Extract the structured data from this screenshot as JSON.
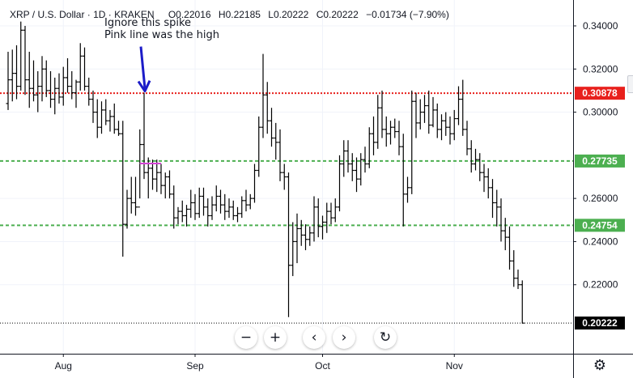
{
  "header": {
    "symbol": "XRP / U.S. Dollar · 1D · KRAKEN",
    "open": "O0.22016",
    "high": "H0.22185",
    "low": "L0.20222",
    "close": "C0.20222",
    "change": "−0.01734 (−7.90%)"
  },
  "annotations": {
    "line1": "Ignore this spike",
    "line2": "Pink line was the high"
  },
  "colors": {
    "candles": "#000000",
    "red_line": "#e8201c",
    "green_line": "#4caf50",
    "last_price_label": "#000000",
    "arrow": "#1c1cc8",
    "pink_line": "#d446d4"
  },
  "toolbar": {
    "zoom_out": "−",
    "zoom_in": "+",
    "scroll_left": "‹",
    "scroll_right": "›",
    "reset": "↻"
  },
  "settings_icon": "gear-icon",
  "chart_data": {
    "type": "ohlc",
    "x_labels": [
      "Aug",
      "Sep",
      "Oct",
      "Nov"
    ],
    "y_tick_labels": [
      "0.34000",
      "0.32000",
      "0.30000",
      "0.26000",
      "0.24000",
      "0.22000"
    ],
    "ylim": [
      0.188,
      0.352
    ],
    "horizontal_lines": [
      {
        "value": 0.30878,
        "label": "0.30878",
        "color": "#e8201c",
        "style": "dotted"
      },
      {
        "value": 0.27735,
        "label": "0.27735",
        "color": "#4caf50",
        "style": "dashed"
      },
      {
        "value": 0.24754,
        "label": "0.24754",
        "color": "#4caf50",
        "style": "dashed"
      },
      {
        "value": 0.20222,
        "label": "0.20222",
        "color": "#000000",
        "style": "dotted",
        "last_price": true
      }
    ],
    "annotation_marks": {
      "arrow_bar_index": 32,
      "pink_segment": {
        "from_index": 31,
        "to_index": 36,
        "value": 0.2762
      }
    },
    "month_start_indices": {
      "Aug": 13,
      "Sep": 44,
      "Oct": 74,
      "Nov": 105
    },
    "bars": [
      [
        0.304,
        0.328,
        0.301,
        0.315
      ],
      [
        0.315,
        0.329,
        0.305,
        0.318
      ],
      [
        0.318,
        0.331,
        0.306,
        0.312
      ],
      [
        0.312,
        0.342,
        0.31,
        0.338
      ],
      [
        0.338,
        0.34,
        0.308,
        0.315
      ],
      [
        0.315,
        0.328,
        0.302,
        0.311
      ],
      [
        0.311,
        0.324,
        0.305,
        0.308
      ],
      [
        0.308,
        0.319,
        0.3,
        0.312
      ],
      [
        0.312,
        0.326,
        0.305,
        0.32
      ],
      [
        0.32,
        0.324,
        0.307,
        0.31
      ],
      [
        0.31,
        0.319,
        0.302,
        0.306
      ],
      [
        0.306,
        0.316,
        0.299,
        0.311
      ],
      [
        0.311,
        0.318,
        0.304,
        0.307
      ],
      [
        0.307,
        0.321,
        0.303,
        0.316
      ],
      [
        0.316,
        0.325,
        0.309,
        0.312
      ],
      [
        0.312,
        0.319,
        0.306,
        0.309
      ],
      [
        0.309,
        0.315,
        0.302,
        0.314
      ],
      [
        0.314,
        0.332,
        0.31,
        0.326
      ],
      [
        0.326,
        0.33,
        0.31,
        0.312
      ],
      [
        0.312,
        0.316,
        0.303,
        0.306
      ],
      [
        0.306,
        0.31,
        0.295,
        0.3
      ],
      [
        0.3,
        0.306,
        0.288,
        0.293
      ],
      [
        0.293,
        0.305,
        0.29,
        0.301
      ],
      [
        0.301,
        0.306,
        0.294,
        0.296
      ],
      [
        0.296,
        0.301,
        0.291,
        0.298
      ],
      [
        0.298,
        0.304,
        0.29,
        0.292
      ],
      [
        0.292,
        0.296,
        0.289,
        0.29
      ],
      [
        0.29,
        0.296,
        0.233,
        0.248
      ],
      [
        0.248,
        0.264,
        0.246,
        0.26
      ],
      [
        0.26,
        0.27,
        0.253,
        0.258
      ],
      [
        0.258,
        0.27,
        0.252,
        0.256
      ],
      [
        0.256,
        0.292,
        0.26,
        0.285
      ],
      [
        0.285,
        0.309,
        0.269,
        0.272
      ],
      [
        0.272,
        0.279,
        0.26,
        0.274
      ],
      [
        0.274,
        0.278,
        0.264,
        0.269
      ],
      [
        0.269,
        0.278,
        0.263,
        0.272
      ],
      [
        0.272,
        0.276,
        0.262,
        0.266
      ],
      [
        0.266,
        0.272,
        0.26,
        0.27
      ],
      [
        0.27,
        0.273,
        0.26,
        0.262
      ],
      [
        0.262,
        0.266,
        0.246,
        0.251
      ],
      [
        0.251,
        0.256,
        0.248,
        0.254
      ],
      [
        0.254,
        0.259,
        0.249,
        0.252
      ],
      [
        0.252,
        0.257,
        0.247,
        0.255
      ],
      [
        0.255,
        0.264,
        0.251,
        0.258
      ],
      [
        0.258,
        0.262,
        0.25,
        0.253
      ],
      [
        0.253,
        0.265,
        0.251,
        0.261
      ],
      [
        0.261,
        0.265,
        0.252,
        0.256
      ],
      [
        0.256,
        0.26,
        0.247,
        0.252
      ],
      [
        0.252,
        0.261,
        0.25,
        0.257
      ],
      [
        0.257,
        0.266,
        0.254,
        0.261
      ],
      [
        0.261,
        0.264,
        0.253,
        0.257
      ],
      [
        0.257,
        0.262,
        0.25,
        0.254
      ],
      [
        0.254,
        0.26,
        0.251,
        0.256
      ],
      [
        0.256,
        0.259,
        0.25,
        0.252
      ],
      [
        0.252,
        0.256,
        0.249,
        0.253
      ],
      [
        0.253,
        0.261,
        0.251,
        0.259
      ],
      [
        0.259,
        0.264,
        0.254,
        0.257
      ],
      [
        0.257,
        0.262,
        0.255,
        0.26
      ],
      [
        0.26,
        0.276,
        0.258,
        0.273
      ],
      [
        0.273,
        0.298,
        0.27,
        0.293
      ],
      [
        0.293,
        0.327,
        0.288,
        0.308
      ],
      [
        0.308,
        0.314,
        0.29,
        0.296
      ],
      [
        0.296,
        0.302,
        0.284,
        0.288
      ],
      [
        0.288,
        0.295,
        0.278,
        0.286
      ],
      [
        0.286,
        0.292,
        0.268,
        0.272
      ],
      [
        0.272,
        0.276,
        0.264,
        0.27
      ],
      [
        0.27,
        0.272,
        0.205,
        0.229
      ],
      [
        0.229,
        0.249,
        0.224,
        0.24
      ],
      [
        0.24,
        0.253,
        0.23,
        0.246
      ],
      [
        0.246,
        0.25,
        0.238,
        0.243
      ],
      [
        0.243,
        0.248,
        0.236,
        0.241
      ],
      [
        0.241,
        0.247,
        0.238,
        0.244
      ],
      [
        0.244,
        0.261,
        0.24,
        0.256
      ],
      [
        0.256,
        0.26,
        0.242,
        0.247
      ],
      [
        0.247,
        0.252,
        0.241,
        0.249
      ],
      [
        0.249,
        0.258,
        0.244,
        0.254
      ],
      [
        0.254,
        0.258,
        0.248,
        0.251
      ],
      [
        0.251,
        0.26,
        0.249,
        0.256
      ],
      [
        0.256,
        0.28,
        0.254,
        0.276
      ],
      [
        0.276,
        0.287,
        0.27,
        0.282
      ],
      [
        0.282,
        0.287,
        0.272,
        0.276
      ],
      [
        0.276,
        0.281,
        0.268,
        0.273
      ],
      [
        0.273,
        0.279,
        0.263,
        0.269
      ],
      [
        0.269,
        0.281,
        0.266,
        0.278
      ],
      [
        0.278,
        0.284,
        0.272,
        0.276
      ],
      [
        0.276,
        0.293,
        0.274,
        0.29
      ],
      [
        0.29,
        0.298,
        0.28,
        0.286
      ],
      [
        0.286,
        0.308,
        0.283,
        0.302
      ],
      [
        0.302,
        0.31,
        0.288,
        0.292
      ],
      [
        0.292,
        0.298,
        0.284,
        0.29
      ],
      [
        0.29,
        0.296,
        0.285,
        0.293
      ],
      [
        0.293,
        0.297,
        0.288,
        0.291
      ],
      [
        0.291,
        0.296,
        0.28,
        0.284
      ],
      [
        0.284,
        0.29,
        0.247,
        0.262
      ],
      [
        0.262,
        0.27,
        0.258,
        0.265
      ],
      [
        0.265,
        0.31,
        0.262,
        0.305
      ],
      [
        0.305,
        0.309,
        0.288,
        0.295
      ],
      [
        0.295,
        0.306,
        0.292,
        0.3
      ],
      [
        0.3,
        0.308,
        0.295,
        0.303
      ],
      [
        0.303,
        0.31,
        0.29,
        0.294
      ],
      [
        0.294,
        0.307,
        0.293,
        0.301
      ],
      [
        0.301,
        0.304,
        0.288,
        0.292
      ],
      [
        0.292,
        0.299,
        0.287,
        0.296
      ],
      [
        0.296,
        0.3,
        0.289,
        0.293
      ],
      [
        0.293,
        0.298,
        0.285,
        0.29
      ],
      [
        0.29,
        0.301,
        0.287,
        0.297
      ],
      [
        0.297,
        0.312,
        0.294,
        0.306
      ],
      [
        0.306,
        0.315,
        0.289,
        0.292
      ],
      [
        0.292,
        0.296,
        0.28,
        0.283
      ],
      [
        0.283,
        0.287,
        0.272,
        0.276
      ],
      [
        0.276,
        0.283,
        0.273,
        0.278
      ],
      [
        0.278,
        0.281,
        0.268,
        0.272
      ],
      [
        0.272,
        0.276,
        0.263,
        0.27
      ],
      [
        0.27,
        0.274,
        0.26,
        0.265
      ],
      [
        0.265,
        0.269,
        0.251,
        0.258
      ],
      [
        0.258,
        0.264,
        0.247,
        0.256
      ],
      [
        0.256,
        0.26,
        0.24,
        0.245
      ],
      [
        0.245,
        0.251,
        0.236,
        0.242
      ],
      [
        0.242,
        0.247,
        0.227,
        0.231
      ],
      [
        0.231,
        0.236,
        0.219,
        0.223
      ],
      [
        0.223,
        0.227,
        0.218,
        0.22
      ],
      [
        0.22,
        0.222,
        0.202,
        0.2022
      ]
    ]
  }
}
